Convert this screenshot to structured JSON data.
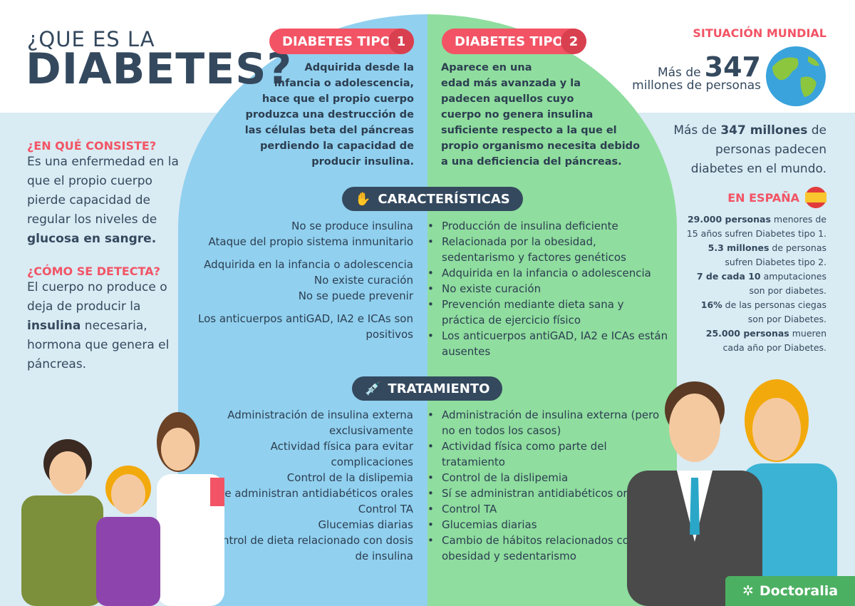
{
  "header": {
    "title_small": "¿QUE ES LA",
    "title_big": "DIABETES?"
  },
  "type1": {
    "label": "DIABETES TIPO",
    "number": "1",
    "description": [
      "Adquirida desde la",
      "infancia o adolescencia,",
      "hace que el propio cuerpo",
      "produzca una destrucción de",
      "las células beta del páncreas",
      "perdiendo la capacidad de",
      "producir insulina."
    ]
  },
  "type2": {
    "label": "DIABETES TIPO",
    "number": "2",
    "description": [
      "Aparece en una",
      "edad más avanzada y la",
      "padecen aquellos cuyo",
      "cuerpo no genera insulina",
      "suficiente respecto a la que el",
      "propio organismo necesita debido",
      "a una deficiencia del páncreas."
    ]
  },
  "world": {
    "heading": "SITUACIÓN MUNDIAL",
    "prefix": "Más de",
    "number": "347",
    "suffix": "millones de personas",
    "text_a": "Más de ",
    "text_bold": "347 millones",
    "text_b": " de personas padecen diabetes en el mundo."
  },
  "left": {
    "q1": "¿EN QUÉ CONSISTE?",
    "a1": "Es una enfermedad en la que el propio cuerpo pierde capacidad de regular los niveles de ",
    "a1_bold": "glucosa en sangre.",
    "q2": "¿CÓMO SE DETECTA?",
    "a2": "El cuerpo no produce o deja de producir la ",
    "a2_bold": "insulina",
    "a2_end": " necesaria, hormona que genera el páncreas."
  },
  "spain": {
    "heading": "EN ESPAÑA",
    "stats": [
      {
        "bold": "29.000 personas",
        "text": " menores de 15 años sufren Diabetes tipo 1."
      },
      {
        "bold": "5.3 millones",
        "text": " de personas sufren Diabetes tipo 2."
      },
      {
        "bold": "7 de cada 10",
        "text": " amputaciones son por diabetes."
      },
      {
        "bold": "16%",
        "text": " de las personas ciegas son por Diabetes."
      },
      {
        "bold": "25.000 personas",
        "text": " mueren cada año por Diabetes."
      }
    ]
  },
  "caracteristicas": {
    "label": "CARACTERÍSTICAS",
    "left": [
      "No se produce insulina",
      "Ataque del propio sistema inmunitario",
      "",
      "Adquirida en la infancia o adolescencia",
      "No existe curación",
      "No se puede prevenir",
      "",
      "Los anticuerpos antiGAD, IA2 e ICAs son positivos"
    ],
    "right": [
      "Producción de insulina deficiente",
      "Relacionada por la obesidad, sedentarismo y factores genéticos",
      "Adquirida en la infancia o adolescencia",
      "No existe curación",
      "Prevención mediante dieta sana y práctica de ejercicio físico",
      "Los anticuerpos antiGAD, IA2 e ICAs están ausentes"
    ]
  },
  "tratamiento": {
    "label": "TRATAMIENTO",
    "left": [
      "Administración de insulina externa exclusivamente",
      "Actividad física para evitar complicaciones",
      "Control de la dislipemia",
      "No se administran antidiabéticos orales",
      "Control TA",
      "Glucemias diarias",
      "Control de dieta relacionado con dosis de insulina"
    ],
    "right": [
      "Administración de insulina externa (pero no en todos los casos)",
      "Actividad física como parte del tratamiento",
      "Control de la dislipemia",
      "Sí se administran antidiabéticos orales",
      "Control TA",
      "Glucemias diarias",
      "Cambio de hábitos relacionados con obesidad y sedentarismo"
    ]
  },
  "brand": "Doctoralia",
  "colors": {
    "blue": "#91d0ef",
    "green": "#8fdd9f",
    "red": "#f25465",
    "navy": "#34495e"
  }
}
